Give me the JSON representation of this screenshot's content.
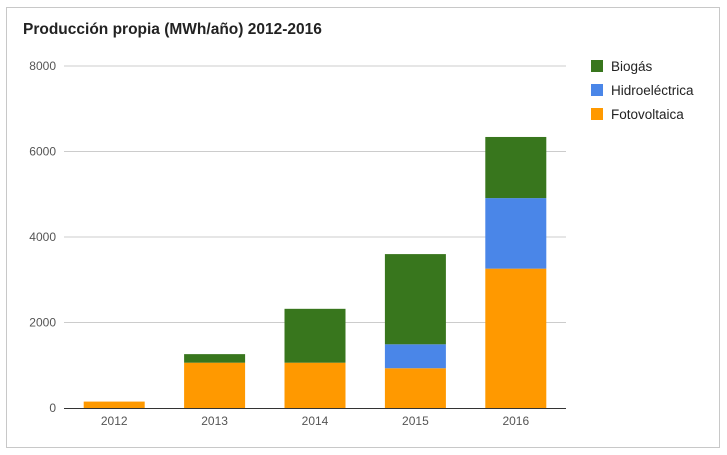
{
  "chart_data": {
    "type": "bar",
    "stacked": true,
    "title": "Producción propia (MWh/año) 2012-2016",
    "categories": [
      "2012",
      "2013",
      "2014",
      "2015",
      "2016"
    ],
    "series": [
      {
        "name": "Fotovoltaica",
        "color": "#ff9900",
        "values": [
          150,
          1060,
          1060,
          930,
          3260
        ]
      },
      {
        "name": "Hidroeléctrica",
        "color": "#4a86e8",
        "values": [
          0,
          0,
          0,
          560,
          1650
        ]
      },
      {
        "name": "Biogás",
        "color": "#38761d",
        "values": [
          0,
          200,
          1260,
          2110,
          1430
        ]
      }
    ],
    "ylim": [
      0,
      8000
    ],
    "yticks": [
      0,
      2000,
      4000,
      6000,
      8000
    ],
    "grid": true,
    "legend_position": "right",
    "legend_order": [
      "Biogás",
      "Hidroeléctrica",
      "Fotovoltaica"
    ]
  }
}
